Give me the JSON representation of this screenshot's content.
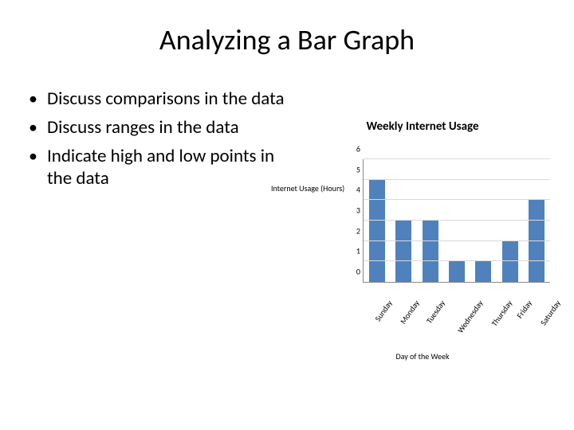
{
  "slide": {
    "title": "Analyzing a Bar Graph",
    "bullets": [
      "Discuss comparisons in the data",
      "Discuss ranges in the data",
      "Indicate high and low points in the data"
    ]
  },
  "chart": {
    "type": "bar",
    "title": "Weekly Internet Usage",
    "y_axis_label": "Internet Usage (Hours)",
    "x_axis_label": "Day of the Week",
    "categories": [
      "Sunday",
      "Monday",
      "Tuesday",
      "Wednesday",
      "Thursday",
      "Friday",
      "Saturday"
    ],
    "values": [
      5,
      3,
      3,
      1,
      1,
      2,
      4
    ],
    "bar_color": "#4f81bd",
    "ylim": [
      0,
      6
    ],
    "ytick_step": 1,
    "yticks": [
      0,
      1,
      2,
      3,
      4,
      5,
      6
    ],
    "grid_color": "#d9d9d9",
    "axis_color": "#888888",
    "background_color": "#ffffff",
    "title_fontsize": 15,
    "label_fontsize": 10,
    "tick_fontsize": 10,
    "bar_width": 0.6
  }
}
